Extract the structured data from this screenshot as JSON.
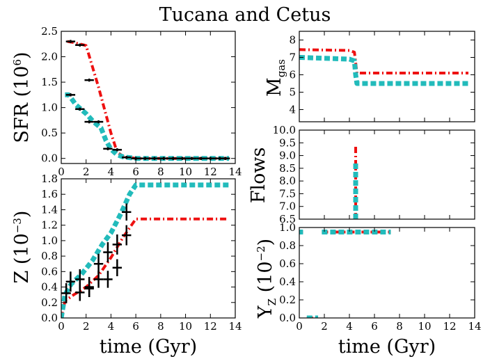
{
  "figure": {
    "title": "Tucana and Cetus",
    "colors": {
      "red": "#ee1111",
      "cyan": "#22bbbb",
      "black": "#000000"
    }
  },
  "chart_data": [
    {
      "id": "sfr",
      "type": "line",
      "ylabel_main": "SFR",
      "ylabel_unit": "(10",
      "ylabel_exp": "6",
      "ylabel_close": ")",
      "xlim": [
        0,
        14
      ],
      "ylim": [
        -0.1,
        2.5
      ],
      "xticks": [
        0,
        2,
        4,
        6,
        8,
        10,
        12,
        14
      ],
      "yticks": [
        0.0,
        0.5,
        1.0,
        1.5,
        2.0,
        2.5
      ],
      "ytick_labels": [
        "0.0",
        "0.5",
        "1.0",
        "1.5",
        "2.0",
        "2.5"
      ],
      "grid": false,
      "series": [
        {
          "style": "dashdot",
          "color": "red",
          "x": [
            0.5,
            1.0,
            2.0,
            3.0,
            4.0,
            4.5,
            5.0,
            5.5,
            6.0,
            13.5
          ],
          "y": [
            2.3,
            2.28,
            2.22,
            1.4,
            0.5,
            0.12,
            0.04,
            0.02,
            0.0,
            0.0
          ]
        },
        {
          "style": "dashed",
          "color": "cyan",
          "x": [
            0.3,
            0.6,
            1.2,
            2.0,
            2.6,
            3.2,
            3.6,
            4.0,
            4.5,
            5.0,
            6.0,
            13.5
          ],
          "y": [
            1.25,
            1.25,
            1.05,
            0.88,
            0.72,
            0.6,
            0.35,
            0.18,
            0.07,
            0.03,
            0.0,
            0.0
          ]
        }
      ],
      "errorbars": {
        "x": [
          0.75,
          1.5,
          2.25,
          3.0,
          3.75,
          4.5,
          5.25,
          6.0,
          6.75,
          7.5,
          8.25,
          9.0,
          9.75,
          10.5,
          11.25,
          12.0,
          12.75,
          13.2
        ],
        "y": [
          1.25,
          0.97,
          0.72,
          0.72,
          0.19,
          0.17,
          0.02,
          0.0,
          0.0,
          0.0,
          0.0,
          0.0,
          0.0,
          0.0,
          0.0,
          0.0,
          0.0,
          0.0
        ],
        "xerr": 0.375,
        "yerr": 0.03
      },
      "errorbars2": {
        "x": [
          0.75,
          1.5,
          2.25
        ],
        "y": [
          2.3,
          2.23,
          1.54
        ],
        "xerr": 0.375,
        "yerr": 0.03
      }
    },
    {
      "id": "metallicity",
      "type": "line",
      "ylabel_main": "Z",
      "ylabel_unit": "(10",
      "ylabel_exp": "−3",
      "ylabel_close": ")",
      "xlabel": "time (Gyr)",
      "xlim": [
        0,
        14
      ],
      "ylim": [
        0.0,
        1.8
      ],
      "xticks": [
        0,
        2,
        4,
        6,
        8,
        10,
        12,
        14
      ],
      "yticks": [
        0.0,
        0.2,
        0.4,
        0.6,
        0.8,
        1.0,
        1.2,
        1.4,
        1.6,
        1.8
      ],
      "ytick_labels": [
        "0.0",
        "0.2",
        "0.4",
        "0.6",
        "0.8",
        "1.0",
        "1.2",
        "1.4",
        "1.6",
        "1.8"
      ],
      "grid": false,
      "series": [
        {
          "style": "dashdot",
          "color": "red",
          "x": [
            0.0,
            0.3,
            1.0,
            2.0,
            3.0,
            4.0,
            5.0,
            6.0,
            13.5
          ],
          "y": [
            0.0,
            0.22,
            0.3,
            0.4,
            0.55,
            0.78,
            1.05,
            1.28,
            1.28
          ]
        },
        {
          "style": "dashed",
          "color": "cyan",
          "x": [
            0.0,
            0.3,
            0.8,
            1.6,
            2.5,
            3.3,
            4.0,
            4.8,
            5.5,
            6.0,
            13.5
          ],
          "y": [
            0.0,
            0.3,
            0.44,
            0.56,
            0.74,
            0.95,
            1.1,
            1.35,
            1.6,
            1.72,
            1.72
          ]
        }
      ],
      "errorbars": {
        "x": [
          0.4,
          0.75,
          1.5,
          2.25,
          3.0,
          3.75,
          4.5,
          5.25
        ],
        "y": [
          0.32,
          0.47,
          0.5,
          0.4,
          0.7,
          0.85,
          0.95,
          1.07
        ],
        "xerr": 0.375,
        "yerr": 0.13
      },
      "errorbars2": {
        "x": [
          1.5,
          2.25,
          3.0,
          3.75,
          4.5,
          5.25
        ],
        "y": [
          0.33,
          0.38,
          0.5,
          0.5,
          0.65,
          1.37
        ],
        "xerr": 0.375,
        "yerr": 0.11
      }
    },
    {
      "id": "mgas",
      "type": "line",
      "ylabel_main": "M",
      "ylabel_sub": "gas",
      "xlim": [
        0,
        14
      ],
      "ylim": [
        3.3,
        8.5
      ],
      "xticks": [
        0,
        2,
        4,
        6,
        8,
        10,
        12,
        14
      ],
      "yticks": [
        4,
        5,
        6,
        7,
        8
      ],
      "ytick_labels": [
        "4",
        "5",
        "6",
        "7",
        "8"
      ],
      "grid": false,
      "show_xtick_labels": false,
      "series": [
        {
          "style": "dashdot",
          "color": "red",
          "x": [
            0.0,
            4.0,
            4.4,
            4.5,
            4.6,
            13.5
          ],
          "y": [
            7.45,
            7.4,
            7.3,
            6.7,
            6.1,
            6.1
          ]
        },
        {
          "style": "dashed",
          "color": "cyan",
          "x": [
            0.0,
            4.0,
            4.4,
            4.5,
            4.6,
            13.5
          ],
          "y": [
            7.0,
            6.9,
            6.8,
            6.0,
            5.5,
            5.5
          ]
        }
      ]
    },
    {
      "id": "flows",
      "type": "line",
      "ylabel_main": "Flows",
      "xlim": [
        0,
        14
      ],
      "ylim": [
        6.5,
        10.0
      ],
      "xticks": [
        0,
        2,
        4,
        6,
        8,
        10,
        12,
        14
      ],
      "yticks": [
        6.5,
        7.0,
        7.5,
        8.0,
        8.5,
        9.0,
        9.5,
        10.0
      ],
      "ytick_labels": [
        "6.5",
        "7.0",
        "7.5",
        "8.0",
        "8.5",
        "9.0",
        "9.5",
        "10.0"
      ],
      "grid": false,
      "show_xtick_labels": false,
      "series": [
        {
          "style": "dashdot",
          "color": "red",
          "x": [
            4.5,
            4.5
          ],
          "y": [
            6.5,
            9.35
          ]
        },
        {
          "style": "dashed",
          "color": "cyan",
          "x": [
            4.5,
            4.5
          ],
          "y": [
            6.5,
            8.7
          ]
        }
      ]
    },
    {
      "id": "yields",
      "type": "line",
      "ylabel_main": "Y",
      "ylabel_sub": "Z",
      "ylabel_unit": "(10",
      "ylabel_exp": "−2",
      "ylabel_close": ")",
      "xlabel": "time (Gyr)",
      "xlim": [
        0,
        14
      ],
      "ylim": [
        0.0,
        1.0
      ],
      "xticks": [
        0,
        2,
        4,
        6,
        8,
        10,
        12,
        14
      ],
      "yticks": [
        0.0,
        0.2,
        0.4,
        0.6,
        0.8,
        1.0
      ],
      "ytick_labels": [
        "0.0",
        "0.2",
        "0.4",
        "0.6",
        "0.8",
        "1.0"
      ],
      "grid": false,
      "series": [
        {
          "style": "dashdot",
          "color": "red",
          "segments": [
            {
              "x": [
                0.0,
                0.3
              ],
              "y": [
                0.95,
                0.95
              ]
            },
            {
              "x": [
                0.6,
                1.5
              ],
              "y": [
                0.0,
                0.0
              ]
            },
            {
              "x": [
                1.8,
                7.3
              ],
              "y": [
                0.95,
                0.95
              ]
            }
          ]
        },
        {
          "style": "dashed",
          "color": "cyan",
          "segments": [
            {
              "x": [
                0.0,
                0.3
              ],
              "y": [
                0.95,
                0.95
              ]
            },
            {
              "x": [
                0.6,
                1.5
              ],
              "y": [
                0.0,
                0.0
              ]
            },
            {
              "x": [
                1.8,
                7.3
              ],
              "y": [
                0.95,
                0.95
              ]
            }
          ]
        }
      ]
    }
  ]
}
